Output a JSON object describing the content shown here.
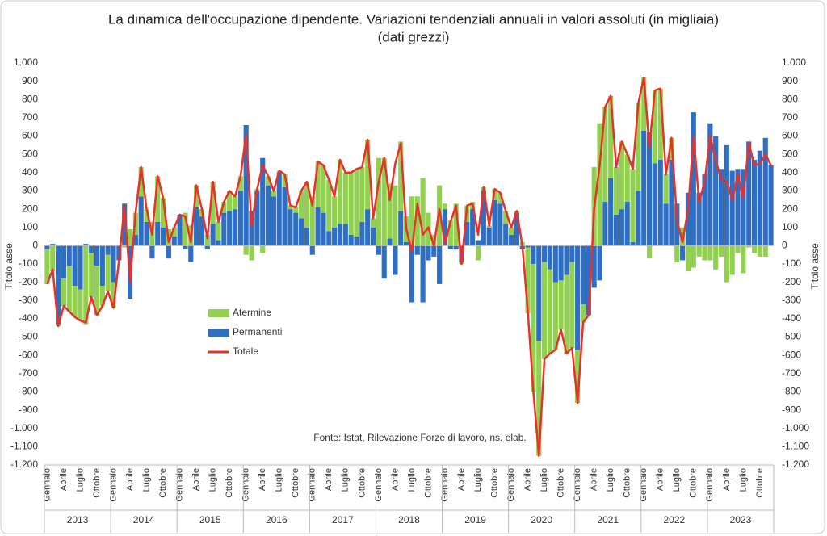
{
  "chart_data": {
    "type": "bar",
    "title": "La dinamica dell'occupazione dipendente. Variazioni tendenziali annuali in valori assoluti (in migliaia)",
    "subtitle": "(dati grezzi)",
    "ylabel": "Titolo asse",
    "y2label": "Titolo asse",
    "annotation": "Fonte: Istat, Rilevazione Forze di lavoro, ns. elab.",
    "stacked": true,
    "legend": "inside-left",
    "categories": [
      "Gennaio",
      null,
      null,
      "Aprile",
      null,
      null,
      "Luglio",
      null,
      null,
      "Ottobre",
      null,
      null,
      "Gennaio",
      null,
      null,
      "Aprile",
      null,
      null,
      "Luglio",
      null,
      null,
      "Ottobre",
      null,
      null,
      "Gennaio",
      null,
      null,
      "Aprile",
      null,
      null,
      "Luglio",
      null,
      null,
      "Ottobre",
      null,
      null,
      "Gennaio",
      null,
      null,
      "Aprile",
      null,
      null,
      "Luglio",
      null,
      null,
      "Ottobre",
      null,
      null,
      "Gennaio",
      null,
      null,
      "Aprile",
      null,
      null,
      "Luglio",
      null,
      null,
      "Ottobre",
      null,
      null,
      "Gennaio",
      null,
      null,
      "Aprile",
      null,
      null,
      "Luglio",
      null,
      null,
      "Ottobre",
      null,
      null,
      "Gennaio",
      null,
      null,
      "Aprile",
      null,
      null,
      "Luglio",
      null,
      null,
      "Ottobre",
      null,
      null,
      "Gennaio",
      null,
      null,
      "Aprile",
      null,
      null,
      "Luglio",
      null,
      null,
      "Ottobre",
      null,
      null,
      "Gennaio",
      null,
      null,
      "Aprile",
      null,
      null,
      "Luglio",
      null,
      null,
      "Ottobre",
      null,
      null,
      "Gennaio",
      null,
      null,
      "Aprile",
      null,
      null,
      "Luglio",
      null,
      null,
      "Ottobre",
      null,
      null,
      "Gennaio",
      null,
      null,
      "Aprile",
      null,
      null,
      "Luglio",
      null,
      null,
      "Ottobre",
      null,
      null
    ],
    "groups": [
      "2013",
      "2014",
      "2015",
      "2016",
      "2017",
      "2018",
      "2019",
      "2020",
      "2021",
      "2022",
      "2023"
    ],
    "series": [
      {
        "name": "Atermine",
        "color": "#92d050",
        "values": [
          -190,
          -140,
          -10,
          -150,
          -250,
          -170,
          -170,
          -430,
          -240,
          -270,
          -110,
          -200,
          -140,
          0,
          -10,
          90,
          120,
          160,
          70,
          130,
          250,
          160,
          90,
          50,
          0,
          180,
          110,
          120,
          40,
          60,
          230,
          100,
          60,
          110,
          70,
          80,
          -50,
          -80,
          10,
          -40,
          50,
          30,
          10,
          70,
          20,
          30,
          150,
          250,
          270,
          250,
          260,
          280,
          170,
          350,
          280,
          340,
          370,
          300,
          380,
          50,
          480,
          480,
          300,
          330,
          380,
          140,
          270,
          270,
          370,
          180,
          60,
          330,
          30,
          140,
          230,
          -10,
          90,
          40,
          -80,
          20,
          10,
          60,
          60,
          70,
          40,
          10,
          20,
          -360,
          -700,
          -630,
          -530,
          -460,
          -370,
          -270,
          -430,
          -470,
          -290,
          -100,
          0,
          430,
          670,
          520,
          450,
          260,
          370,
          260,
          400,
          480,
          290,
          -70,
          400,
          390,
          160,
          120,
          -90,
          100,
          -140,
          -120,
          -60,
          -80,
          -80,
          -130,
          -60,
          -200,
          -160,
          -40,
          -150,
          -10,
          -40,
          -60,
          -60,
          0
        ]
      },
      {
        "name": "Permanenti",
        "color": "#2e6fc4",
        "values": [
          -20,
          10,
          -430,
          -180,
          -110,
          -220,
          -240,
          10,
          -40,
          -110,
          -220,
          -50,
          -200,
          -80,
          230,
          -290,
          60,
          270,
          130,
          -70,
          130,
          100,
          -70,
          50,
          170,
          -20,
          -90,
          210,
          160,
          -20,
          120,
          30,
          180,
          190,
          200,
          300,
          660,
          190,
          300,
          480,
          330,
          270,
          400,
          320,
          200,
          180,
          150,
          100,
          -50,
          210,
          180,
          80,
          100,
          120,
          120,
          60,
          50,
          130,
          200,
          100,
          -50,
          -180,
          40,
          -160,
          190,
          20,
          -310,
          -50,
          -310,
          -80,
          -60,
          -210,
          200,
          -20,
          -20,
          -90,
          130,
          200,
          30,
          300,
          100,
          250,
          230,
          120,
          60,
          180,
          -20,
          -10,
          -100,
          -520,
          -90,
          -130,
          -200,
          -190,
          -160,
          -90,
          -570,
          -320,
          -380,
          -230,
          -190,
          240,
          370,
          170,
          200,
          240,
          20,
          300,
          630,
          620,
          450,
          470,
          230,
          470,
          230,
          -80,
          290,
          730,
          290,
          390,
          670,
          600,
          420,
          550,
          410,
          420,
          420,
          570,
          470,
          520,
          590,
          440
        ]
      },
      {
        "name": "Totale",
        "color": "#e8312a",
        "type": "line",
        "values": [
          -210,
          -130,
          -440,
          -330,
          -360,
          -390,
          -410,
          -420,
          -280,
          -380,
          -330,
          -250,
          -340,
          -80,
          220,
          -200,
          180,
          430,
          200,
          60,
          380,
          260,
          20,
          100,
          170,
          160,
          20,
          330,
          200,
          40,
          350,
          130,
          240,
          300,
          270,
          380,
          610,
          110,
          310,
          440,
          380,
          300,
          410,
          390,
          220,
          210,
          300,
          350,
          220,
          460,
          440,
          360,
          270,
          470,
          400,
          400,
          420,
          430,
          580,
          150,
          350,
          480,
          250,
          450,
          560,
          90,
          -30,
          230,
          60,
          100,
          0,
          200,
          10,
          130,
          220,
          -100,
          220,
          230,
          60,
          320,
          110,
          310,
          290,
          190,
          100,
          190,
          0,
          -360,
          -800,
          -1150,
          -620,
          -590,
          -570,
          -460,
          -590,
          -560,
          -860,
          -420,
          -380,
          200,
          440,
          760,
          820,
          430,
          570,
          500,
          420,
          780,
          920,
          540,
          850,
          860,
          390,
          590,
          140,
          20,
          200,
          600,
          240,
          350,
          600,
          470,
          360,
          350,
          250,
          390,
          260,
          560,
          440,
          450,
          500,
          440
        ]
      }
    ],
    "ylim": [
      -1200,
      1000
    ],
    "yticks": [
      {
        "value": -1200,
        "label": "-1.200"
      },
      {
        "value": -1100,
        "label": "-1.100"
      },
      {
        "value": -1000,
        "label": "-1.000"
      },
      -900,
      -800,
      -700,
      -600,
      -500,
      -400,
      -300,
      -200,
      -100,
      0,
      100,
      200,
      300,
      400,
      500,
      600,
      700,
      800,
      900,
      {
        "value": 1000,
        "label": "1.000"
      }
    ],
    "y2lim": [
      -1200,
      1000
    ],
    "y2ticks": [
      {
        "value": -1200,
        "label": "-1.200"
      },
      {
        "value": -1100,
        "label": "-1.100"
      },
      {
        "value": -1000,
        "label": "-1.000"
      },
      -900,
      -800,
      -700,
      -600,
      -500,
      -400,
      -300,
      -200,
      -100,
      0,
      100,
      200,
      300,
      400,
      500,
      600,
      700,
      800,
      900,
      {
        "value": 1000,
        "label": "1.000"
      }
    ],
    "grid": false
  }
}
